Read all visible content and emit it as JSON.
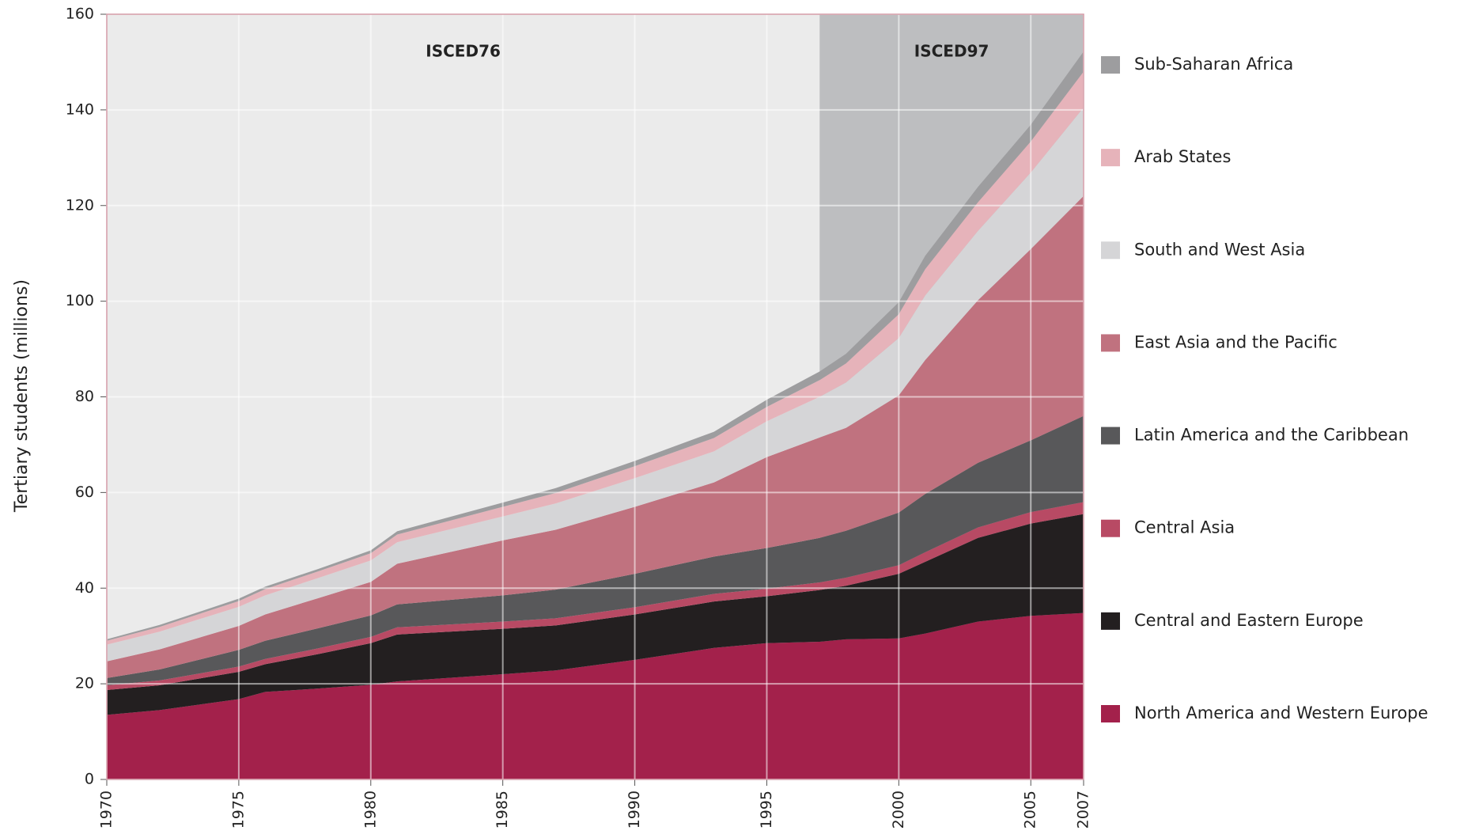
{
  "chart_data": {
    "type": "stacked_area",
    "y_label": "Tertiary students (millions)",
    "x": [
      1970,
      1972,
      1975,
      1976,
      1978,
      1980,
      1981,
      1985,
      1987,
      1990,
      1993,
      1995,
      1997,
      1998,
      2000,
      2001,
      2003,
      2005,
      2007
    ],
    "xlim": [
      1970,
      2007
    ],
    "xticks": [
      1970,
      1975,
      1980,
      1985,
      1990,
      1995,
      2000,
      2005,
      2007
    ],
    "ylim": [
      0,
      160
    ],
    "yticks": [
      0,
      20,
      40,
      60,
      80,
      100,
      120,
      140,
      160
    ],
    "grid": true,
    "legend": "right",
    "annotations": [
      {
        "text": "ISCED76",
        "x": [
          1970,
          1997
        ],
        "color": "#ebebeb"
      },
      {
        "text": "ISCED97",
        "x": [
          1997,
          2007
        ],
        "color": "#bdbec0"
      }
    ],
    "series": [
      {
        "name": "North America and Western Europe",
        "color": "#a3214b",
        "values": [
          13.5,
          14.5,
          16.8,
          18.3,
          19,
          19.8,
          20.5,
          22,
          22.8,
          25,
          27.5,
          28.5,
          28.8,
          29.3,
          29.5,
          30.5,
          33,
          34.2,
          34.8
        ]
      },
      {
        "name": "Central and Eastern Europe",
        "color": "#231f20",
        "values": [
          5.2,
          5.2,
          5.7,
          5.8,
          7.2,
          8.7,
          9.8,
          9.5,
          9.4,
          9.5,
          9.7,
          9.8,
          10.8,
          11.2,
          13.5,
          15,
          17.5,
          19.3,
          20.7
        ]
      },
      {
        "name": "Central Asia",
        "color": "#b84a64",
        "values": [
          1,
          1,
          1.1,
          1.1,
          1.2,
          1.3,
          1.5,
          1.5,
          1.5,
          1.5,
          1.6,
          1.6,
          1.6,
          1.7,
          1.8,
          2,
          2.2,
          2.4,
          2.5
        ]
      },
      {
        "name": "Latin America and the Caribbean",
        "color": "#58585a",
        "values": [
          1.5,
          2.3,
          3.5,
          3.8,
          4.2,
          4.5,
          4.8,
          5.5,
          6,
          7,
          7.8,
          8.5,
          9.3,
          9.8,
          11,
          12.2,
          13.5,
          15,
          18
        ]
      },
      {
        "name": "East Asia and the Pacific",
        "color": "#c0727f",
        "values": [
          3.5,
          4.2,
          5,
          5.5,
          6.3,
          7,
          8.5,
          11.5,
          12.5,
          14,
          15.5,
          19,
          21,
          21.5,
          24.5,
          28,
          34,
          40,
          46
        ]
      },
      {
        "name": "South and West Asia",
        "color": "#d5d5d7",
        "values": [
          3.5,
          3.7,
          4,
          4,
          4.2,
          4.5,
          4.5,
          5,
          5.5,
          6,
          6.5,
          7.5,
          8.5,
          9.5,
          12,
          13.5,
          14.5,
          16,
          18.5
        ]
      },
      {
        "name": "Arab States",
        "color": "#e6b3ba",
        "values": [
          0.8,
          1,
          1.2,
          1.3,
          1.4,
          1.5,
          1.6,
          2,
          2.2,
          2.5,
          2.8,
          3,
          3.5,
          4,
          5,
          5.5,
          6,
          6.5,
          7.5
        ]
      },
      {
        "name": "Sub-Saharan Africa",
        "color": "#9d9d9f",
        "values": [
          0.3,
          0.4,
          0.5,
          0.5,
          0.5,
          0.6,
          0.7,
          0.9,
          1,
          1.1,
          1.3,
          1.5,
          1.8,
          2,
          2.5,
          2.8,
          3.2,
          3.5,
          4.2
        ]
      }
    ]
  }
}
